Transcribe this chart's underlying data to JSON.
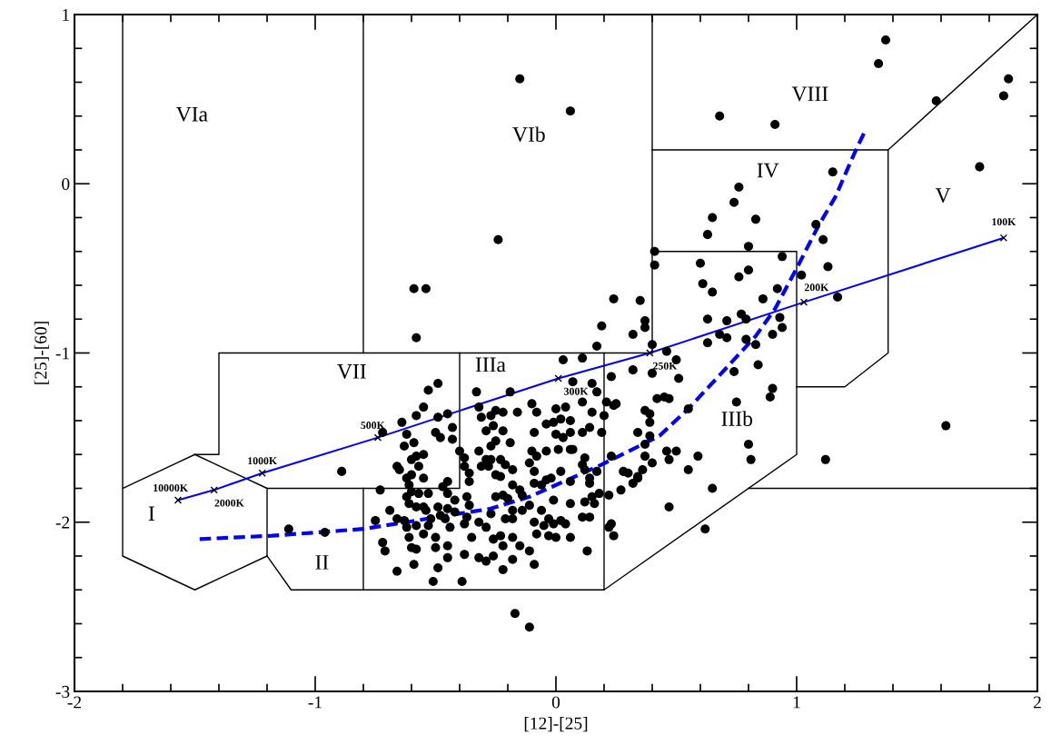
{
  "chart_data": {
    "type": "scatter",
    "xlabel": "[12]-[25]",
    "ylabel": "[25]-[60]",
    "xlim": [
      -2,
      2
    ],
    "ylim": [
      -3,
      1
    ],
    "xticks": [
      -2,
      -1,
      0,
      1,
      2
    ],
    "yticks": [
      -3,
      -2,
      -1,
      0,
      1
    ],
    "annotations": [
      "VIa",
      "VIb",
      "VIII",
      "IV",
      "V",
      "VII",
      "IIIa",
      "IIIb",
      "I",
      "II",
      {
        "text": "10000K",
        "x": -1.57,
        "y": -1.87
      },
      {
        "text": "2000K",
        "x": -1.42,
        "y": -1.81
      },
      {
        "text": "1000K",
        "x": -1.22,
        "y": -1.71
      },
      {
        "text": "500K",
        "x": -0.74,
        "y": -1.5
      },
      {
        "text": "300K",
        "x": 0.01,
        "y": -1.15
      },
      {
        "text": "250K",
        "x": 0.39,
        "y": -1.0
      },
      {
        "text": "200K",
        "x": 1.03,
        "y": -0.7
      },
      {
        "text": "100K",
        "x": 1.86,
        "y": -0.32
      }
    ],
    "series": [
      {
        "color": "#000000",
        "marker": "circle",
        "x": [
          -0.15,
          0.06,
          -0.24,
          -0.59,
          -0.54,
          -0.58,
          1.37,
          1.34,
          1.88,
          1.86,
          1.58,
          1.76,
          1.15,
          1.08,
          1.11,
          1.13,
          1.02,
          1.17,
          1.62,
          1.12,
          0.68,
          0.91,
          0.76,
          0.74,
          0.65,
          0.83,
          0.63,
          0.8,
          0.41,
          0.41,
          0.6,
          0.94,
          0.8,
          0.76,
          0.61,
          0.65,
          0.92,
          0.86,
          0.24,
          0.35,
          0.77,
          0.63,
          0.71,
          0.79,
          0.93,
          0.37,
          0.37,
          0.19,
          0.94,
          0.68,
          0.71,
          0.79,
          0.9,
          0.32,
          0.63,
          0.83,
          0.17,
          0.4,
          0.46,
          0.84,
          0.03,
          0.11,
          0.5,
          0.32,
          0.23,
          0.4,
          0.51,
          0.07,
          0.15,
          0.17,
          0.74,
          0.9,
          0.89,
          0.42,
          0.45,
          0.47,
          0.75,
          0.21,
          0.11,
          0.25,
          0.55,
          0.37,
          0.39,
          0.39,
          0.34,
          0.39,
          0.37,
          0.8,
          0.46,
          0.5,
          0.37,
          0.59,
          0.47,
          0.81,
          0.4,
          0.36,
          0.55,
          0.34,
          0.65,
          0.47,
          0.62,
          -0.89,
          -1.11,
          -0.96,
          -0.17,
          -0.11,
          -0.49,
          -0.53,
          -0.55,
          -0.58,
          -0.64,
          -0.49,
          -0.45,
          -0.72,
          -0.62,
          -0.5,
          -0.48,
          -0.43,
          -0.43,
          -0.63,
          -0.59,
          -0.55,
          -0.58,
          -0.6,
          -0.4,
          -0.38,
          -0.38,
          -0.66,
          -0.65,
          -0.57,
          -0.6,
          -0.62,
          -0.55,
          -0.61,
          -0.45,
          -0.47,
          -0.73,
          -0.6,
          -0.57,
          -0.53,
          -0.45,
          -0.62,
          -0.37,
          -0.42,
          -0.61,
          -0.58,
          -0.55,
          -0.49,
          -0.45,
          -0.36,
          -0.69,
          -0.54,
          -0.42,
          -0.66,
          -0.48,
          -0.46,
          -0.37,
          -0.75,
          -0.63,
          -0.52,
          -0.32,
          -0.38,
          -0.62,
          -0.58,
          -0.53,
          -0.44,
          -0.29,
          -0.61,
          -0.55,
          -0.5,
          -0.35,
          -0.72,
          -0.6,
          -0.58,
          -0.5,
          -0.45,
          -0.71,
          -0.38,
          -0.45,
          -0.32,
          -0.29,
          -0.49,
          -0.59,
          -0.66,
          -0.51,
          -0.39,
          -0.33,
          -0.32,
          -0.31,
          -0.27,
          -0.26,
          -0.29,
          -0.25,
          -0.27,
          -0.32,
          -0.29,
          -0.27,
          -0.31,
          -0.28,
          -0.36,
          -0.36,
          -0.25,
          -0.19,
          -0.1,
          -0.08,
          -0.16,
          -0.22,
          0.0,
          0.04,
          0.02,
          0.06,
          0.15,
          0.24,
          0.2,
          -0.22,
          -0.09,
          -0.04,
          -0.01,
          0.0,
          0.03,
          0.06,
          0.07,
          0.11,
          0.14,
          0.19,
          -0.25,
          -0.19,
          -0.1,
          -0.08,
          -0.04,
          0.01,
          0.06,
          0.11,
          0.12,
          0.23,
          -0.23,
          -0.21,
          -0.11,
          -0.09,
          -0.18,
          -0.23,
          0.02,
          0.06,
          0.12,
          0.17,
          0.14,
          0.28,
          0.3,
          0.32,
          0.34,
          -0.04,
          -0.02,
          -0.06,
          -0.09,
          -0.18,
          -0.15,
          -0.22,
          -0.25,
          -0.2,
          -0.14,
          0.14,
          0.18,
          0.22,
          0.15,
          0.27,
          -0.01,
          0.06,
          0.12,
          0.16,
          -0.11,
          -0.18,
          -0.14,
          -0.06,
          -0.27,
          -0.21,
          -0.18,
          -0.09,
          -0.03,
          0.02,
          0.11,
          0.14,
          -0.05,
          -0.01,
          0.04,
          0.23,
          0.22,
          -0.08,
          -0.03,
          0.0,
          0.06,
          0.24,
          -0.26,
          -0.23,
          -0.18,
          -0.22,
          -0.15,
          -0.11,
          0.13,
          -0.26,
          -0.18,
          -0.09,
          -0.22
        ],
        "values": [
          0.62,
          0.43,
          -0.33,
          -0.62,
          -0.62,
          -0.91,
          0.85,
          0.71,
          0.62,
          0.52,
          0.49,
          0.1,
          0.07,
          -0.24,
          -0.33,
          -0.49,
          -0.54,
          -0.67,
          -1.43,
          -1.63,
          0.4,
          0.35,
          -0.02,
          -0.11,
          -0.2,
          -0.21,
          -0.3,
          -0.37,
          -0.4,
          -0.48,
          -0.47,
          -0.43,
          -0.51,
          -0.55,
          -0.59,
          -0.64,
          -0.62,
          -0.68,
          -0.68,
          -0.69,
          -0.77,
          -0.8,
          -0.81,
          -0.8,
          -0.79,
          -0.81,
          -0.85,
          -0.84,
          -0.85,
          -0.89,
          -0.91,
          -0.92,
          -0.89,
          -0.89,
          -0.94,
          -0.95,
          -0.96,
          -0.95,
          -0.99,
          -1.07,
          -1.04,
          -1.03,
          -1.04,
          -1.1,
          -1.14,
          -1.12,
          -1.15,
          -1.17,
          -1.18,
          -1.23,
          -1.11,
          -1.21,
          -1.26,
          -1.27,
          -1.26,
          -1.27,
          -1.29,
          -1.29,
          -1.29,
          -1.3,
          -1.33,
          -1.34,
          -1.36,
          -1.41,
          -1.47,
          -1.49,
          -1.54,
          -1.54,
          -1.58,
          -1.58,
          -1.61,
          -1.61,
          -1.63,
          -1.63,
          -1.65,
          -1.69,
          -1.69,
          -1.74,
          -1.8,
          -1.91,
          -2.04,
          -1.7,
          -2.04,
          -2.06,
          -2.54,
          -2.62,
          -1.18,
          -1.22,
          -1.32,
          -1.37,
          -1.41,
          -1.38,
          -1.36,
          -1.47,
          -1.48,
          -1.47,
          -1.5,
          -1.44,
          -1.51,
          -1.55,
          -1.53,
          -1.6,
          -1.61,
          -1.63,
          -1.58,
          -1.62,
          -1.67,
          -1.67,
          -1.69,
          -1.67,
          -1.72,
          -1.74,
          -1.74,
          -1.78,
          -1.76,
          -1.79,
          -1.81,
          -1.82,
          -1.83,
          -1.83,
          -1.83,
          -1.85,
          -1.85,
          -1.87,
          -1.89,
          -1.91,
          -1.91,
          -1.91,
          -1.92,
          -1.9,
          -1.93,
          -1.93,
          -1.94,
          -1.98,
          -1.96,
          -1.98,
          -1.97,
          -1.99,
          -1.99,
          -1.98,
          -2.0,
          -2.01,
          -2.03,
          -2.02,
          -2.02,
          -2.03,
          -2.03,
          -2.09,
          -2.07,
          -2.09,
          -2.09,
          -2.12,
          -2.15,
          -2.16,
          -2.15,
          -2.14,
          -2.17,
          -2.19,
          -2.21,
          -2.21,
          -2.23,
          -2.27,
          -2.25,
          -2.29,
          -2.35,
          -2.35,
          -1.23,
          -1.32,
          -1.38,
          -1.37,
          -1.43,
          -1.46,
          -1.34,
          -1.55,
          -1.58,
          -1.63,
          -1.63,
          -1.67,
          -1.67,
          -1.71,
          -1.76,
          -1.72,
          -1.23,
          -1.3,
          -1.35,
          -1.35,
          -1.35,
          -1.33,
          -1.32,
          -1.39,
          -1.4,
          -1.35,
          -1.31,
          -1.37,
          -1.46,
          -1.47,
          -1.42,
          -1.41,
          -1.48,
          -1.5,
          -1.47,
          -1.57,
          -1.47,
          -1.44,
          -1.47,
          -1.52,
          -1.53,
          -1.58,
          -1.61,
          -1.58,
          -1.57,
          -1.57,
          -1.66,
          -1.62,
          -1.61,
          -1.63,
          -1.66,
          -1.65,
          -1.7,
          -1.69,
          -1.73,
          -1.7,
          -1.76,
          -1.69,
          -1.7,
          -1.74,
          -1.7,
          -1.71,
          -1.77,
          -1.73,
          -1.75,
          -1.74,
          -1.78,
          -1.77,
          -1.78,
          -1.81,
          -1.84,
          -1.85,
          -1.86,
          -1.84,
          -1.77,
          -1.83,
          -1.84,
          -1.85,
          -1.81,
          -1.87,
          -1.89,
          -1.88,
          -1.89,
          -1.9,
          -1.93,
          -1.93,
          -1.93,
          -1.95,
          -1.98,
          -1.98,
          -2.0,
          -1.98,
          -1.99,
          -1.97,
          -1.97,
          -2.02,
          -2.01,
          -2.01,
          -2.01,
          -2.03,
          -2.07,
          -2.08,
          -2.09,
          -2.09,
          -2.08,
          -2.1,
          -2.08,
          -2.09,
          -2.14,
          -2.14,
          -2.17,
          -2.17,
          -2.2,
          -2.22,
          -2.25,
          -2.28
        ]
      },
      {
        "type": "line",
        "color": "#000000",
        "x": [
          -1.8,
          -1.8,
          -1.5,
          -1.2,
          -1.2,
          -1.5,
          -1.8
        ],
        "values": [
          1,
          -2.2,
          -2.4,
          -2.2,
          -1.8,
          -1.6,
          -1.8
        ]
      },
      {
        "type": "line",
        "color": "#000000",
        "x": [
          -1.5,
          -1.4,
          -1.4,
          0.4
        ],
        "values": [
          -1.6,
          -1.6,
          -1.0,
          -1.0
        ]
      },
      {
        "type": "line",
        "color": "#000000",
        "x": [
          -1.2,
          -0.4,
          -0.4
        ],
        "values": [
          -1.8,
          -1.8,
          -1.0
        ]
      },
      {
        "type": "line",
        "color": "#000000",
        "x": [
          -1.2,
          -1.1,
          0.2,
          1.0,
          1.0,
          0.4
        ],
        "values": [
          -2.2,
          -2.4,
          -2.4,
          -1.6,
          -0.4,
          -0.4
        ]
      },
      {
        "type": "line",
        "color": "#000000",
        "x": [
          -0.8,
          -0.8
        ],
        "values": [
          -1.8,
          -2.4
        ]
      },
      {
        "type": "line",
        "color": "#000000",
        "x": [
          0.2,
          0.2
        ],
        "values": [
          -1.0,
          -2.4
        ]
      },
      {
        "type": "line",
        "color": "#000000",
        "x": [
          -0.8,
          -0.8
        ],
        "values": [
          -1.0,
          1
        ]
      },
      {
        "type": "line",
        "color": "#000000",
        "x": [
          0.4,
          0.4
        ],
        "values": [
          -1.0,
          1
        ]
      },
      {
        "type": "line",
        "color": "#000000",
        "x": [
          0.4,
          1.38,
          2
        ],
        "values": [
          0.2,
          0.2,
          1
        ]
      },
      {
        "type": "line",
        "color": "#000000",
        "x": [
          1.38,
          1.38,
          1.2,
          1.0
        ],
        "values": [
          0.2,
          -1.0,
          -1.2,
          -1.2
        ]
      },
      {
        "type": "line",
        "color": "#000000",
        "x": [
          0.8,
          2
        ],
        "values": [
          -1.8,
          -1.8
        ]
      },
      {
        "type": "line",
        "color": "#0000ff",
        "marker": "cross",
        "x": [
          -1.57,
          -1.42,
          -1.22,
          -0.74,
          0.01,
          0.39,
          1.03,
          1.86
        ],
        "values": [
          -1.87,
          -1.81,
          -1.71,
          -1.5,
          -1.15,
          -1.0,
          -0.7,
          -0.32
        ]
      },
      {
        "type": "line",
        "color": "#0000ff",
        "line_style": "dashed",
        "x": [
          -1.48,
          -1.18,
          -0.8,
          -0.27,
          -0.11,
          0.19,
          0.43,
          0.55,
          0.72,
          0.83,
          0.91,
          1.0,
          1.09,
          1.16,
          1.24,
          1.28
        ],
        "values": [
          -2.1,
          -2.08,
          -2.04,
          -1.92,
          -1.85,
          -1.66,
          -1.49,
          -1.33,
          -1.07,
          -0.9,
          -0.74,
          -0.5,
          -0.25,
          -0.08,
          0.18,
          0.3
        ]
      }
    ]
  }
}
